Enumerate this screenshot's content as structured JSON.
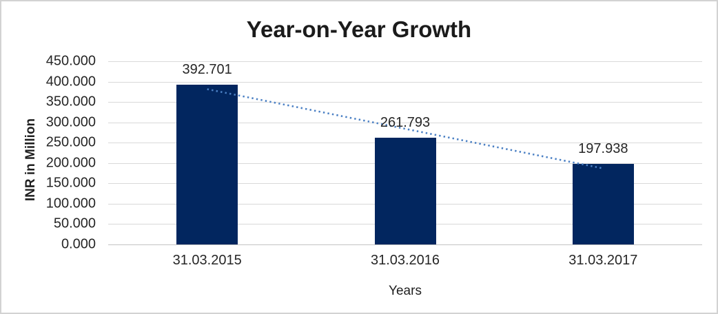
{
  "chart_data": {
    "type": "bar",
    "title": "Year-on-Year Growth",
    "xlabel": "Years",
    "ylabel": "INR in Million",
    "categories": [
      "31.03.2015",
      "31.03.2016",
      "31.03.2017"
    ],
    "values": [
      392.701,
      261.793,
      197.938
    ],
    "data_labels": [
      "392.701",
      "261.793",
      "197.938"
    ],
    "y_ticks": [
      "450.000",
      "400.000",
      "350.000",
      "300.000",
      "250.000",
      "200.000",
      "150.000",
      "100.000",
      "50.000",
      "0.000"
    ],
    "ylim": [
      0,
      450
    ],
    "grid": true,
    "legend": "none",
    "bar_color": "#02265f",
    "gridline_color": "#d9d9d9",
    "trendline": {
      "type": "linear",
      "style": "dotted",
      "color": "#4b80c4"
    }
  }
}
